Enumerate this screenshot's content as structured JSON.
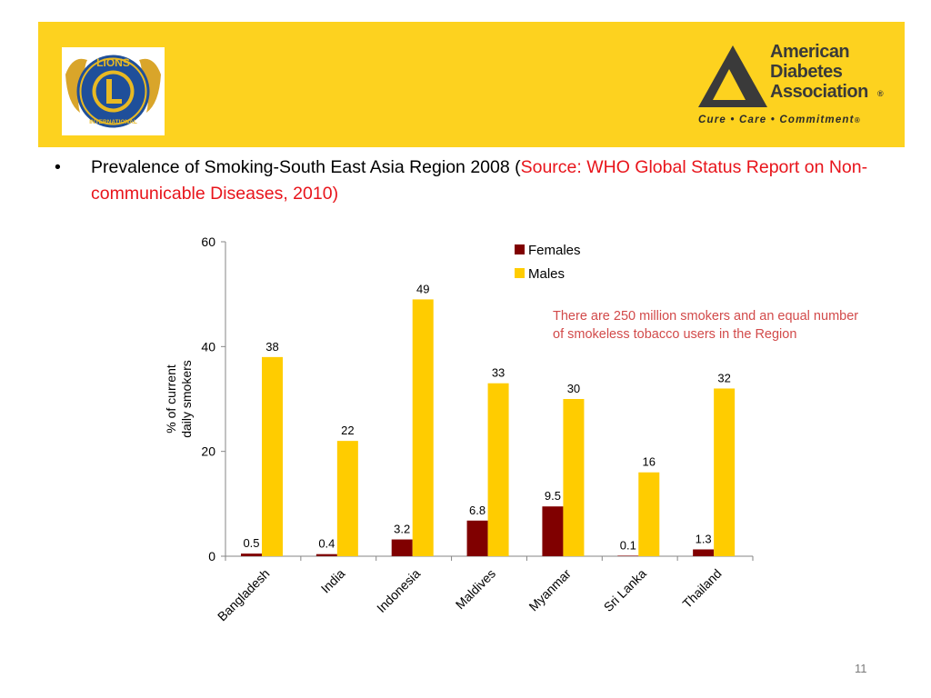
{
  "header": {
    "left_logo": {
      "icon": "lions-international-logo",
      "top_text": "LIONS",
      "center_letter": "L",
      "bottom_text": "INTERNATIONAL"
    },
    "right_logo": {
      "icon": "american-diabetes-association-logo",
      "line1": "American",
      "line2": "Diabetes",
      "line3": "Association",
      "reg_mark": "®",
      "tagline": "Cure • Care • Commitment",
      "tagline_mark": "®"
    },
    "band_color": "#fdd21f"
  },
  "bullet": {
    "marker": "•",
    "text": "Prevalence of Smoking-South East Asia Region 2008  (",
    "source": "Source: WHO Global Status Report on Non-communicable Diseases, 2010",
    "close": ")"
  },
  "annotation": "There are 250 million smokers and an equal number of smokeless tobacco users in the Region",
  "page_number": "11",
  "chart_data": {
    "type": "bar",
    "categories": [
      "Bangladesh",
      "India",
      "Indonesia",
      "Maldives",
      "Myanmar",
      "Sri Lanka",
      "Thailand"
    ],
    "series": [
      {
        "name": "Females",
        "color": "#800000",
        "values": [
          0.5,
          0.4,
          3.2,
          6.8,
          9.5,
          0.1,
          1.3
        ],
        "labels": [
          "0.5",
          "0.4",
          "3.2",
          "6.8",
          "9.5",
          "0.1",
          "1.3"
        ]
      },
      {
        "name": "Males",
        "color": "#ffcc00",
        "values": [
          38,
          22,
          49,
          33,
          30,
          16,
          32
        ],
        "labels": [
          "38",
          "22",
          "49",
          "33",
          "30",
          "16",
          "32"
        ]
      }
    ],
    "ylabel_lines": [
      "% of current",
      "daily smokers"
    ],
    "xlabel": "",
    "ylim": [
      0,
      60
    ],
    "yticks": [
      0,
      20,
      40,
      60
    ],
    "ytick_labels": [
      "0",
      "20",
      "40",
      "60"
    ],
    "legend_position": "top-right",
    "grid": false
  }
}
